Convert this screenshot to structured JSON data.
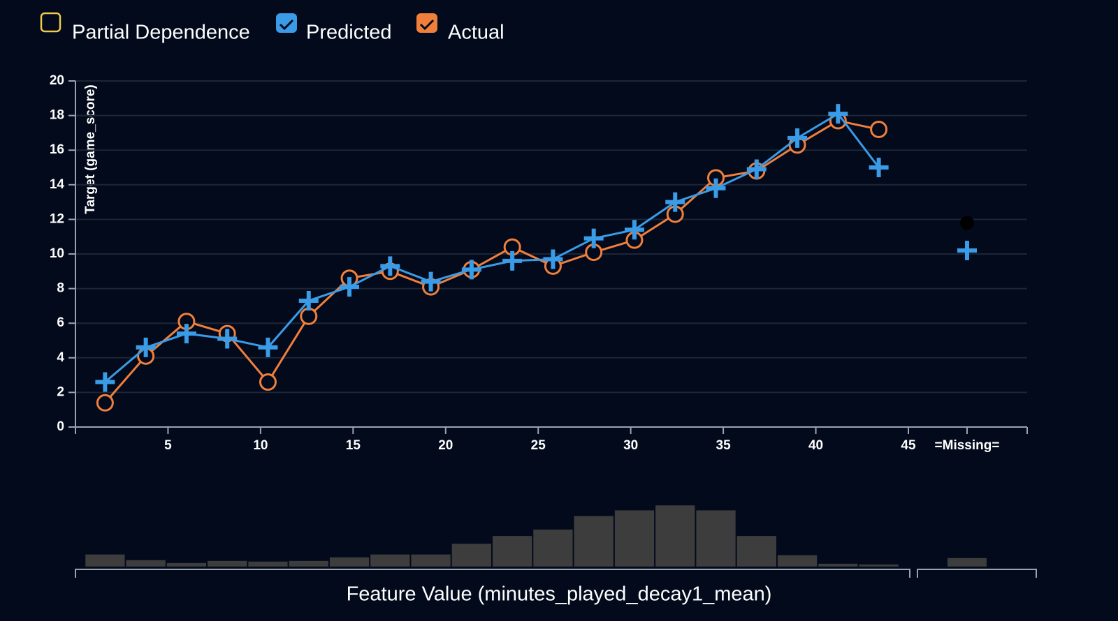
{
  "chart_data": {
    "type": "line",
    "legend": [
      "Partial Dependence",
      "Predicted",
      "Actual"
    ],
    "partial_dependence": {
      "name": "Partial Dependence",
      "color": "#f2c94c",
      "checked": false
    },
    "ylabel": "Target (game_score)",
    "xlabel": "Feature Value (minutes_played_decay1_mean)",
    "x": [
      1.6,
      3.8,
      6.0,
      8.2,
      10.4,
      12.6,
      14.8,
      17.0,
      19.2,
      21.4,
      23.6,
      25.8,
      28.0,
      30.2,
      32.4,
      34.6,
      36.8,
      39.0,
      41.2,
      43.4
    ],
    "series": [
      {
        "name": "Predicted",
        "color": "#3a9be6",
        "marker": "plus",
        "checked": true,
        "values": [
          2.6,
          4.6,
          5.4,
          5.1,
          4.6,
          7.3,
          8.1,
          9.3,
          8.4,
          9.1,
          9.6,
          9.7,
          10.9,
          11.4,
          13.0,
          13.8,
          14.9,
          16.7,
          18.1,
          15.0
        ],
        "missing_value": 10.2
      },
      {
        "name": "Actual",
        "color": "#f07f3c",
        "marker": "circle",
        "checked": true,
        "values": [
          1.4,
          4.1,
          6.1,
          5.4,
          2.6,
          6.4,
          8.6,
          9.0,
          8.1,
          9.1,
          10.4,
          9.3,
          10.1,
          10.8,
          12.3,
          14.4,
          14.8,
          16.3,
          17.7,
          17.2
        ],
        "missing_value": 11.8,
        "missing_color": "#000000"
      }
    ],
    "missing_label": "=Missing=",
    "xlim": [
      0,
      45
    ],
    "xticks": [
      5,
      10,
      15,
      20,
      25,
      30,
      35,
      40,
      45
    ],
    "ylim": [
      0,
      20
    ],
    "yticks": [
      0,
      2,
      4,
      6,
      8,
      10,
      12,
      14,
      16,
      18,
      20
    ],
    "grid": true,
    "histogram": {
      "color": "#3d3d3d",
      "bins": [
        0.5,
        2.7,
        4.9,
        7.1,
        9.3,
        11.5,
        13.7,
        15.9,
        18.1,
        20.3,
        22.5,
        24.7,
        26.9,
        29.1,
        31.3,
        33.5,
        35.7,
        37.9,
        40.1,
        42.3,
        44.5
      ],
      "counts": [
        17,
        9,
        5,
        8,
        7,
        8,
        13,
        17,
        17,
        32,
        43,
        52,
        71,
        79,
        86,
        79,
        43,
        16,
        4,
        3
      ],
      "missing_count": 12
    }
  }
}
